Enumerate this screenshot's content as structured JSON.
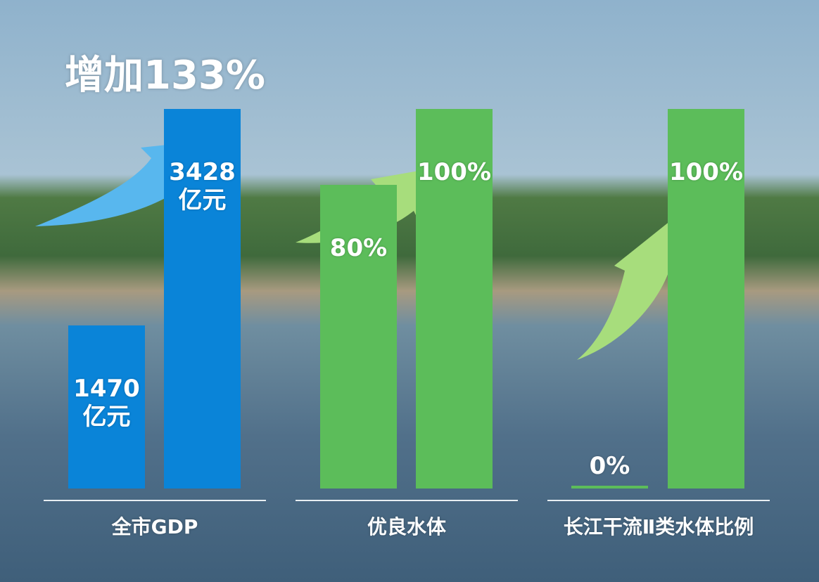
{
  "chart_data": [
    {
      "type": "bar",
      "title": "全市GDP",
      "annotation": "增加133%",
      "values": [
        1470,
        3428
      ],
      "value_labels": [
        "1470亿元",
        "3428亿元"
      ],
      "color": "#0a84d8",
      "ylim": [
        0,
        3428
      ]
    },
    {
      "type": "bar",
      "title": "优良水体",
      "values": [
        80,
        100
      ],
      "value_labels": [
        "80%",
        "100%"
      ],
      "color": "#5cbd5a",
      "ylim": [
        0,
        100
      ]
    },
    {
      "type": "bar",
      "title": "长江干流Ⅱ类水体比例",
      "values": [
        0,
        100
      ],
      "value_labels": [
        "0%",
        "100%"
      ],
      "color": "#5cbd5a",
      "ylim": [
        0,
        100
      ]
    }
  ]
}
